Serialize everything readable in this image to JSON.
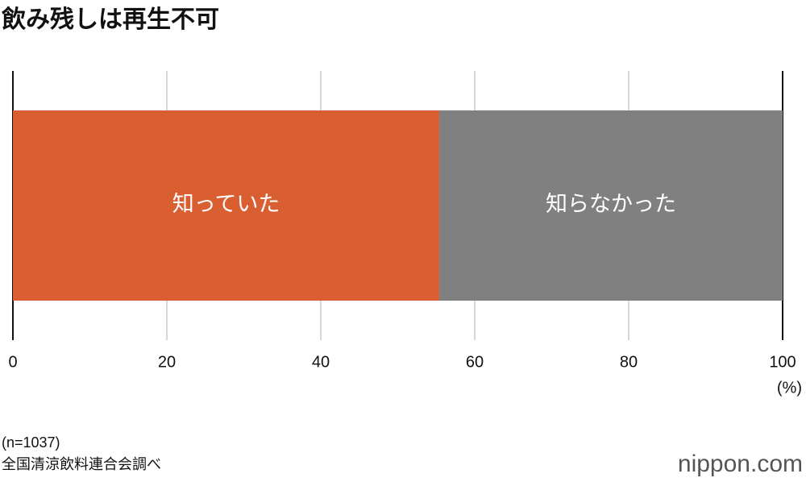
{
  "chart_data": {
    "type": "stacked-bar-horizontal",
    "title": "飲み残しは再生不可",
    "categories": [
      null
    ],
    "series": [
      {
        "name": "知っていた",
        "color": "#d95f33",
        "values": [
          55.4
        ]
      },
      {
        "name": "知らなかった",
        "color": "#808080",
        "values": [
          44.6
        ]
      }
    ],
    "xlim": [
      0,
      100
    ],
    "xticks": [
      0,
      20,
      40,
      60,
      80,
      100
    ],
    "xlabel": "(%)",
    "grid": true,
    "notes": [
      "(n=1037)",
      "全国清涼飲料連合会調べ"
    ],
    "logo": "nippon.com"
  }
}
